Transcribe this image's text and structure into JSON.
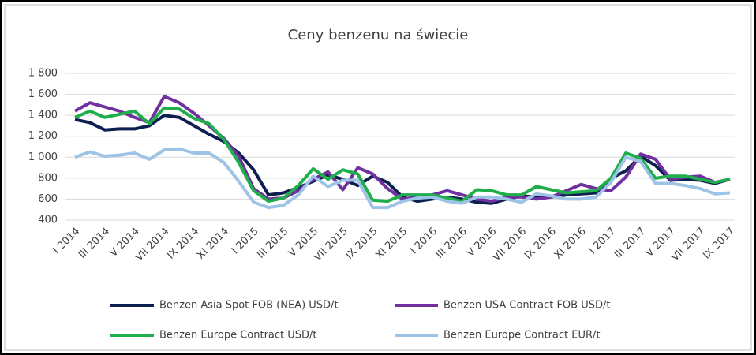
{
  "chart_data": {
    "type": "line",
    "title": "Ceny benzenu na świecie",
    "categories": [
      "I 2014",
      null,
      "III 2014",
      null,
      "V 2014",
      null,
      "VII 2014",
      null,
      "IX 2014",
      null,
      "XI 2014",
      null,
      "I 2015",
      null,
      "III 2015",
      null,
      "V 2015",
      null,
      "VII 2015",
      null,
      "IX 2015",
      null,
      "XI 2015",
      null,
      "I 2016",
      null,
      "III 2016",
      null,
      "V 2016",
      null,
      "VII 2016",
      null,
      "IX 2016",
      null,
      "XI 2016",
      null,
      "I 2017",
      null,
      "III 2017",
      null,
      "V 2017",
      null,
      "VII 2017",
      null,
      "IX 2017"
    ],
    "series": [
      {
        "name": "Benzen Asia Spot FOB (NEA) USD/t",
        "color": "#0d1f4f",
        "values": [
          1360,
          1330,
          1260,
          1270,
          1270,
          1300,
          1400,
          1380,
          1300,
          1220,
          1150,
          1040,
          880,
          640,
          660,
          710,
          770,
          830,
          790,
          730,
          820,
          760,
          620,
          580,
          600,
          620,
          600,
          570,
          560,
          600,
          630,
          620,
          620,
          640,
          650,
          660,
          800,
          870,
          1010,
          920,
          780,
          790,
          780,
          750,
          790
        ]
      },
      {
        "name": "Benzen USA Contract FOB USD/t",
        "color": "#7030a0",
        "values": [
          1440,
          1520,
          1480,
          1440,
          1380,
          1330,
          1580,
          1520,
          1420,
          1300,
          1180,
          1010,
          700,
          600,
          610,
          680,
          790,
          860,
          690,
          900,
          840,
          700,
          600,
          620,
          640,
          680,
          640,
          600,
          580,
          620,
          620,
          600,
          620,
          680,
          740,
          700,
          680,
          810,
          1030,
          980,
          790,
          810,
          820,
          760,
          790
        ]
      },
      {
        "name": "Benzen Europe Contract USD/t",
        "color": "#1fae4b",
        "values": [
          1380,
          1440,
          1380,
          1410,
          1440,
          1320,
          1470,
          1460,
          1370,
          1320,
          1170,
          950,
          680,
          580,
          610,
          730,
          890,
          790,
          880,
          840,
          590,
          580,
          640,
          640,
          640,
          610,
          580,
          690,
          680,
          640,
          640,
          720,
          690,
          660,
          670,
          680,
          800,
          1040,
          990,
          800,
          820,
          820,
          790,
          760,
          790
        ]
      },
      {
        "name": "Benzen Europe Contract EUR/t",
        "color": "#9dc3e6",
        "values": [
          1000,
          1050,
          1010,
          1020,
          1040,
          980,
          1070,
          1080,
          1040,
          1040,
          950,
          770,
          570,
          520,
          540,
          640,
          820,
          720,
          780,
          780,
          520,
          520,
          580,
          610,
          620,
          580,
          560,
          620,
          620,
          600,
          570,
          650,
          630,
          600,
          600,
          620,
          760,
          1000,
          960,
          750,
          750,
          730,
          700,
          650,
          660
        ]
      }
    ],
    "ylim": [
      400,
      1800
    ],
    "yticks": [
      400,
      600,
      800,
      {
        "value": 1000,
        "label": "1 000"
      },
      {
        "value": 1200,
        "label": "1 200"
      },
      {
        "value": 1400,
        "label": "1 400"
      },
      {
        "value": 1600,
        "label": "1 600"
      },
      {
        "value": 1800,
        "label": "1 800"
      }
    ],
    "grid": true,
    "legend": "bottom"
  }
}
